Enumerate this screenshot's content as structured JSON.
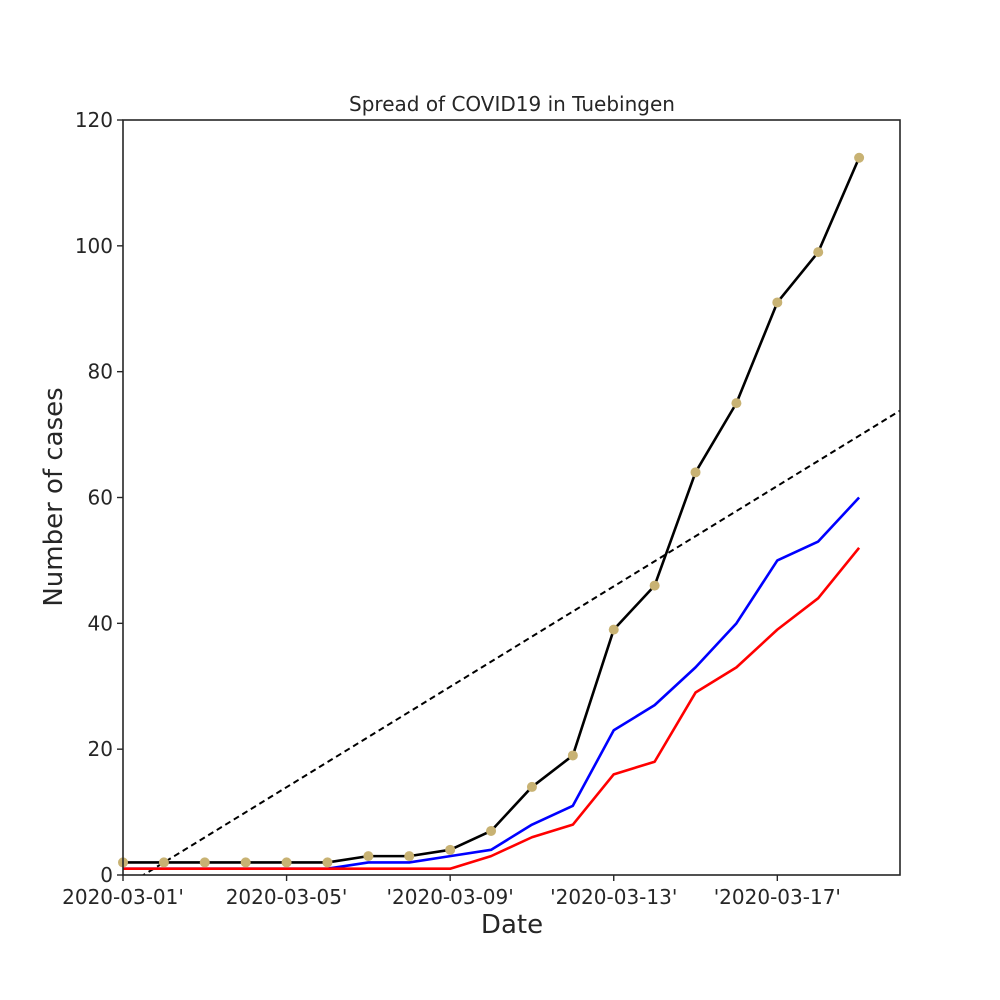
{
  "chart_data": {
    "type": "line",
    "title": "Spread of COVID19 in Tuebingen",
    "xlabel": "Date",
    "ylabel": "Number of cases",
    "x": [
      "2020-03-01",
      "2020-03-02",
      "2020-03-03",
      "2020-03-04",
      "2020-03-05",
      "2020-03-06",
      "2020-03-07",
      "2020-03-08",
      "2020-03-09",
      "2020-03-10",
      "2020-03-11",
      "2020-03-12",
      "2020-03-13",
      "2020-03-14",
      "2020-03-15",
      "2020-03-16",
      "2020-03-17",
      "2020-03-18",
      "2020-03-19"
    ],
    "xlim": [
      "2020-03-01",
      "2020-03-20"
    ],
    "ylim": [
      0,
      120
    ],
    "x_ticks": [
      {
        "date": "2020-03-01",
        "label": "2020-03-01'"
      },
      {
        "date": "2020-03-05",
        "label": "2020-03-05'"
      },
      {
        "date": "2020-03-09",
        "label": "'2020-03-09'"
      },
      {
        "date": "2020-03-13",
        "label": "'2020-03-13'"
      },
      {
        "date": "2020-03-17",
        "label": "'2020-03-17'"
      }
    ],
    "y_ticks": [
      0,
      20,
      40,
      60,
      80,
      100,
      120
    ],
    "grid": false,
    "series": [
      {
        "color": "#000000",
        "marker_color": "#c8b273",
        "values": [
          2,
          2,
          2,
          2,
          2,
          2,
          3,
          3,
          4,
          7,
          14,
          19,
          39,
          46,
          64,
          75,
          91,
          99,
          114
        ]
      },
      {
        "color": "#0000ff",
        "values": [
          1,
          1,
          1,
          1,
          1,
          1,
          2,
          2,
          3,
          4,
          8,
          11,
          23,
          27,
          33,
          40,
          50,
          53,
          60
        ]
      },
      {
        "color": "#ff0000",
        "values": [
          1,
          1,
          1,
          1,
          1,
          1,
          1,
          1,
          1,
          3,
          6,
          8,
          16,
          18,
          29,
          33,
          39,
          44,
          52
        ]
      }
    ],
    "trend_line": {
      "color": "#000000",
      "style": "dashed",
      "points": [
        {
          "x": "2020-03-01",
          "y": -2
        },
        {
          "x": "2020-03-20",
          "y": 73.8
        }
      ]
    }
  }
}
